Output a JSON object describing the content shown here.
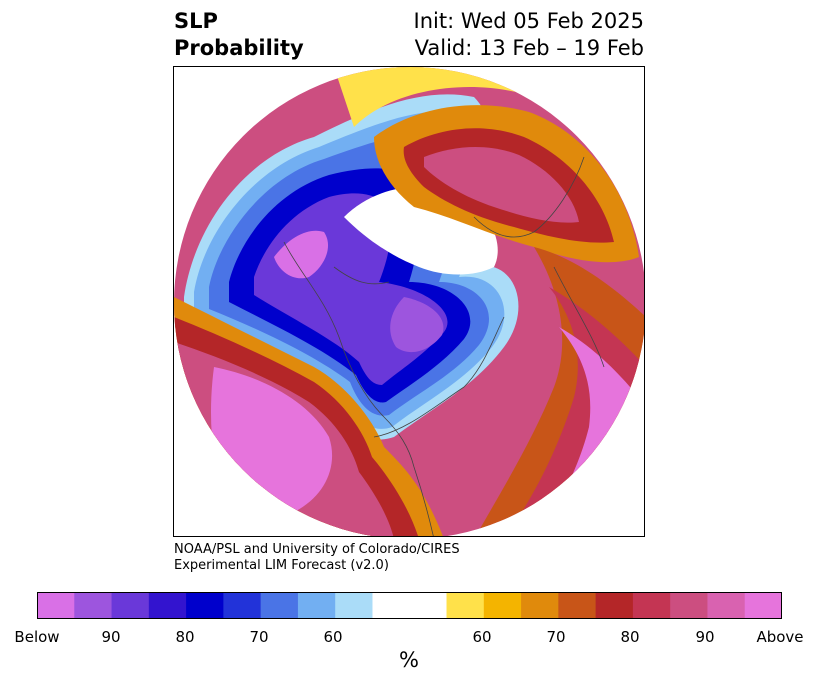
{
  "title": {
    "left_line1": "SLP",
    "left_line2": "Probability",
    "right_line1": "Init: Wed 05 Feb 2025",
    "right_line2": "Valid: 13 Feb – 19 Feb"
  },
  "credit": {
    "line1": "NOAA/PSL and University of Colorado/CIRES",
    "line2": "Experimental LIM Forecast (v2.0)"
  },
  "colorbar": {
    "unit_label": "%",
    "colors": [
      "#d970e6",
      "#9d55de",
      "#6a38d9",
      "#3314cf",
      "#0000cc",
      "#2233d9",
      "#4a74e6",
      "#72aff2",
      "#aadcf8",
      "#ffffff",
      "#ffe14a",
      "#f4b400",
      "#e08a0c",
      "#c85518",
      "#b42628",
      "#c43553",
      "#cc4e80",
      "#d962b0",
      "#e674dc"
    ],
    "tick_labels": [
      "Below",
      "90",
      "80",
      "70",
      "60",
      "60",
      "70",
      "80",
      "90",
      "Above"
    ]
  },
  "map": {
    "projection": "north-polar-stereographic",
    "features": [
      "coastlines",
      "country-borders",
      "state-borders"
    ]
  }
}
